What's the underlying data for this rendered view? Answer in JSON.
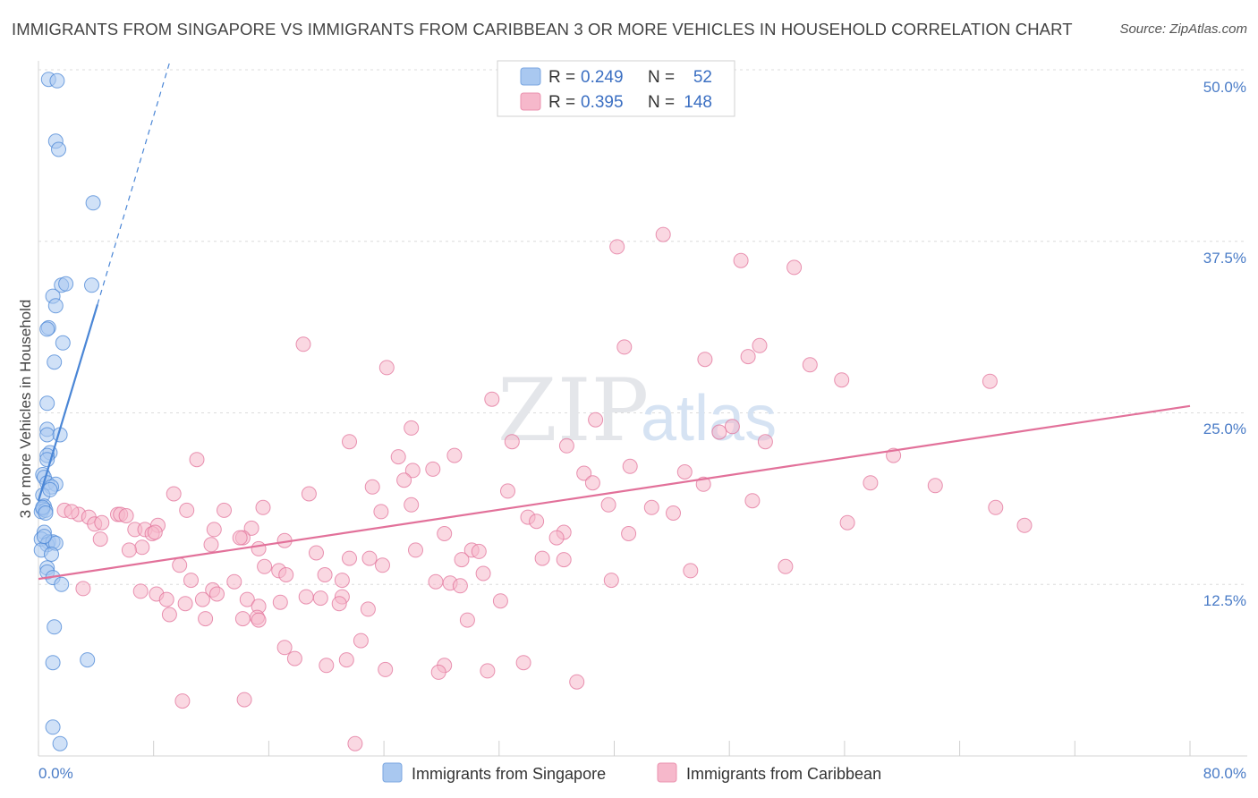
{
  "title": "IMMIGRANTS FROM SINGAPORE VS IMMIGRANTS FROM CARIBBEAN 3 OR MORE VEHICLES IN HOUSEHOLD CORRELATION CHART",
  "source": "Source: ZipAtlas.com",
  "watermark": {
    "zip": "ZIP",
    "atlas": "atlas"
  },
  "legend": {
    "rows": [
      {
        "r_label": "R =",
        "r_value": "0.249",
        "n_label": "N =",
        "n_value": "52",
        "color": "#a9c8f0"
      },
      {
        "r_label": "R =",
        "r_value": "0.395",
        "n_label": "N =",
        "n_value": "148",
        "color": "#f6b8cb"
      }
    ]
  },
  "bottom_legend": [
    {
      "label": "Immigrants from Singapore",
      "color": "#a9c8f0"
    },
    {
      "label": "Immigrants from Caribbean",
      "color": "#f6b8cb"
    }
  ],
  "chart_data": {
    "type": "scatter",
    "title": "IMMIGRANTS FROM SINGAPORE VS IMMIGRANTS FROM CARIBBEAN 3 OR MORE VEHICLES IN HOUSEHOLD CORRELATION CHART",
    "xlabel": "",
    "ylabel": "3 or more Vehicles in Household",
    "xlim": [
      0,
      80
    ],
    "ylim": [
      0,
      50
    ],
    "x_tick_labels": [
      "0.0%",
      "80.0%"
    ],
    "y_ticks": [
      12.5,
      25.0,
      37.5,
      50.0
    ],
    "y_tick_labels": [
      "12.5%",
      "25.0%",
      "37.5%",
      "50.0%"
    ],
    "grid": "horizontal dashed",
    "legend_position": "top-center",
    "series": [
      {
        "name": "Immigrants from Singapore",
        "color": "#4a86d6",
        "fill": "#a9c8f0",
        "trend": {
          "x": [
            0,
            4.1
          ],
          "y": [
            18.6,
            32.9
          ],
          "dashed_to": [
            9.1,
            50.5
          ]
        },
        "points": [
          [
            0.7,
            49.3
          ],
          [
            1.3,
            49.2
          ],
          [
            1.2,
            44.8
          ],
          [
            1.4,
            44.2
          ],
          [
            3.8,
            40.3
          ],
          [
            1.6,
            34.3
          ],
          [
            1.9,
            34.4
          ],
          [
            3.7,
            34.3
          ],
          [
            1.0,
            33.5
          ],
          [
            1.2,
            32.8
          ],
          [
            0.7,
            31.2
          ],
          [
            0.6,
            31.1
          ],
          [
            1.7,
            30.1
          ],
          [
            1.1,
            28.7
          ],
          [
            0.6,
            25.7
          ],
          [
            0.6,
            23.8
          ],
          [
            0.6,
            23.4
          ],
          [
            1.5,
            23.4
          ],
          [
            0.8,
            22.1
          ],
          [
            0.6,
            21.9
          ],
          [
            0.6,
            21.6
          ],
          [
            0.3,
            20.5
          ],
          [
            0.4,
            20.3
          ],
          [
            0.6,
            19.9
          ],
          [
            1.2,
            19.8
          ],
          [
            0.9,
            19.6
          ],
          [
            0.3,
            19.0
          ],
          [
            0.4,
            18.2
          ],
          [
            0.3,
            18.0
          ],
          [
            0.2,
            17.8
          ],
          [
            0.5,
            17.9
          ],
          [
            0.4,
            16.3
          ],
          [
            0.2,
            15.8
          ],
          [
            0.7,
            15.6
          ],
          [
            0.6,
            15.4
          ],
          [
            1.0,
            15.6
          ],
          [
            1.2,
            15.5
          ],
          [
            0.2,
            15.0
          ],
          [
            0.9,
            14.7
          ],
          [
            0.6,
            13.7
          ],
          [
            0.6,
            13.4
          ],
          [
            1.0,
            13.0
          ],
          [
            1.6,
            12.5
          ],
          [
            1.1,
            9.4
          ],
          [
            1.0,
            6.8
          ],
          [
            3.4,
            7.0
          ],
          [
            1.0,
            2.1
          ],
          [
            1.5,
            0.9
          ],
          [
            0.3,
            18.1
          ],
          [
            0.5,
            17.7
          ],
          [
            0.8,
            19.4
          ],
          [
            0.4,
            16.0
          ]
        ]
      },
      {
        "name": "Immigrants from Caribbean",
        "color": "#e2719a",
        "fill": "#f6b8cb",
        "trend": {
          "x": [
            0,
            80
          ],
          "y": [
            12.9,
            25.5
          ]
        },
        "points": [
          [
            43.4,
            38.0
          ],
          [
            40.2,
            37.1
          ],
          [
            48.8,
            36.1
          ],
          [
            52.5,
            35.6
          ],
          [
            18.4,
            30.0
          ],
          [
            40.7,
            29.8
          ],
          [
            50.1,
            29.9
          ],
          [
            46.3,
            28.9
          ],
          [
            49.3,
            29.1
          ],
          [
            53.6,
            28.5
          ],
          [
            24.2,
            28.3
          ],
          [
            55.8,
            27.4
          ],
          [
            66.1,
            27.3
          ],
          [
            31.5,
            26.0
          ],
          [
            38.7,
            24.5
          ],
          [
            48.2,
            24.0
          ],
          [
            47.3,
            23.6
          ],
          [
            25.9,
            23.9
          ],
          [
            21.6,
            22.9
          ],
          [
            32.9,
            22.9
          ],
          [
            36.7,
            22.6
          ],
          [
            50.5,
            22.9
          ],
          [
            25.0,
            21.8
          ],
          [
            28.9,
            21.9
          ],
          [
            59.4,
            21.9
          ],
          [
            11.0,
            21.6
          ],
          [
            41.1,
            21.1
          ],
          [
            26.0,
            20.8
          ],
          [
            27.4,
            20.9
          ],
          [
            37.9,
            20.6
          ],
          [
            44.9,
            20.7
          ],
          [
            25.4,
            20.1
          ],
          [
            38.5,
            19.9
          ],
          [
            46.2,
            19.8
          ],
          [
            23.2,
            19.6
          ],
          [
            57.8,
            19.9
          ],
          [
            62.3,
            19.7
          ],
          [
            32.6,
            19.3
          ],
          [
            9.4,
            19.1
          ],
          [
            18.8,
            19.1
          ],
          [
            49.6,
            18.6
          ],
          [
            39.6,
            18.3
          ],
          [
            15.6,
            18.1
          ],
          [
            25.9,
            18.3
          ],
          [
            10.3,
            17.9
          ],
          [
            12.9,
            17.9
          ],
          [
            23.8,
            17.8
          ],
          [
            42.6,
            18.1
          ],
          [
            44.1,
            17.7
          ],
          [
            66.5,
            18.1
          ],
          [
            1.8,
            17.9
          ],
          [
            2.8,
            17.6
          ],
          [
            5.5,
            17.6
          ],
          [
            5.7,
            17.6
          ],
          [
            6.1,
            17.5
          ],
          [
            2.3,
            17.8
          ],
          [
            3.5,
            17.4
          ],
          [
            34.0,
            17.4
          ],
          [
            34.6,
            17.1
          ],
          [
            56.2,
            17.0
          ],
          [
            68.5,
            16.8
          ],
          [
            8.3,
            16.8
          ],
          [
            3.9,
            16.9
          ],
          [
            4.4,
            17.0
          ],
          [
            12.2,
            16.5
          ],
          [
            14.8,
            16.6
          ],
          [
            6.7,
            16.5
          ],
          [
            7.4,
            16.5
          ],
          [
            7.9,
            16.2
          ],
          [
            8.1,
            16.3
          ],
          [
            36.5,
            16.3
          ],
          [
            36.0,
            15.9
          ],
          [
            28.2,
            16.2
          ],
          [
            41.0,
            16.2
          ],
          [
            14.2,
            15.9
          ],
          [
            4.3,
            15.8
          ],
          [
            12.0,
            15.4
          ],
          [
            17.1,
            15.7
          ],
          [
            7.2,
            15.2
          ],
          [
            14.0,
            15.9
          ],
          [
            15.3,
            15.1
          ],
          [
            6.3,
            15.0
          ],
          [
            30.1,
            15.0
          ],
          [
            30.6,
            14.9
          ],
          [
            26.2,
            15.0
          ],
          [
            19.3,
            14.8
          ],
          [
            21.6,
            14.4
          ],
          [
            29.4,
            14.3
          ],
          [
            23.0,
            14.4
          ],
          [
            23.9,
            13.9
          ],
          [
            36.5,
            14.3
          ],
          [
            35.0,
            14.4
          ],
          [
            51.9,
            13.8
          ],
          [
            9.8,
            13.9
          ],
          [
            15.7,
            13.8
          ],
          [
            16.7,
            13.5
          ],
          [
            17.2,
            13.2
          ],
          [
            13.6,
            12.7
          ],
          [
            30.9,
            13.3
          ],
          [
            19.9,
            13.2
          ],
          [
            10.6,
            12.8
          ],
          [
            21.1,
            12.8
          ],
          [
            27.6,
            12.7
          ],
          [
            28.6,
            12.6
          ],
          [
            29.3,
            12.4
          ],
          [
            45.3,
            13.5
          ],
          [
            39.8,
            12.8
          ],
          [
            3.1,
            12.2
          ],
          [
            7.1,
            12.0
          ],
          [
            8.2,
            11.8
          ],
          [
            12.1,
            12.1
          ],
          [
            8.9,
            11.4
          ],
          [
            11.4,
            11.4
          ],
          [
            14.5,
            11.4
          ],
          [
            18.6,
            11.6
          ],
          [
            21.1,
            11.6
          ],
          [
            19.6,
            11.5
          ],
          [
            20.9,
            11.1
          ],
          [
            16.8,
            11.2
          ],
          [
            32.1,
            11.3
          ],
          [
            10.2,
            11.1
          ],
          [
            15.3,
            10.9
          ],
          [
            12.4,
            11.8
          ],
          [
            22.9,
            10.7
          ],
          [
            9.1,
            10.3
          ],
          [
            15.2,
            10.1
          ],
          [
            14.2,
            10.0
          ],
          [
            15.3,
            9.9
          ],
          [
            11.6,
            10.0
          ],
          [
            29.8,
            9.9
          ],
          [
            22.4,
            8.4
          ],
          [
            17.1,
            7.9
          ],
          [
            17.8,
            7.1
          ],
          [
            21.4,
            7.0
          ],
          [
            20.0,
            6.6
          ],
          [
            28.2,
            6.6
          ],
          [
            24.1,
            6.3
          ],
          [
            33.7,
            6.8
          ],
          [
            31.2,
            6.2
          ],
          [
            27.8,
            6.1
          ],
          [
            37.4,
            5.4
          ],
          [
            10.0,
            4.0
          ],
          [
            14.3,
            4.1
          ],
          [
            22.0,
            0.9
          ]
        ]
      }
    ]
  }
}
